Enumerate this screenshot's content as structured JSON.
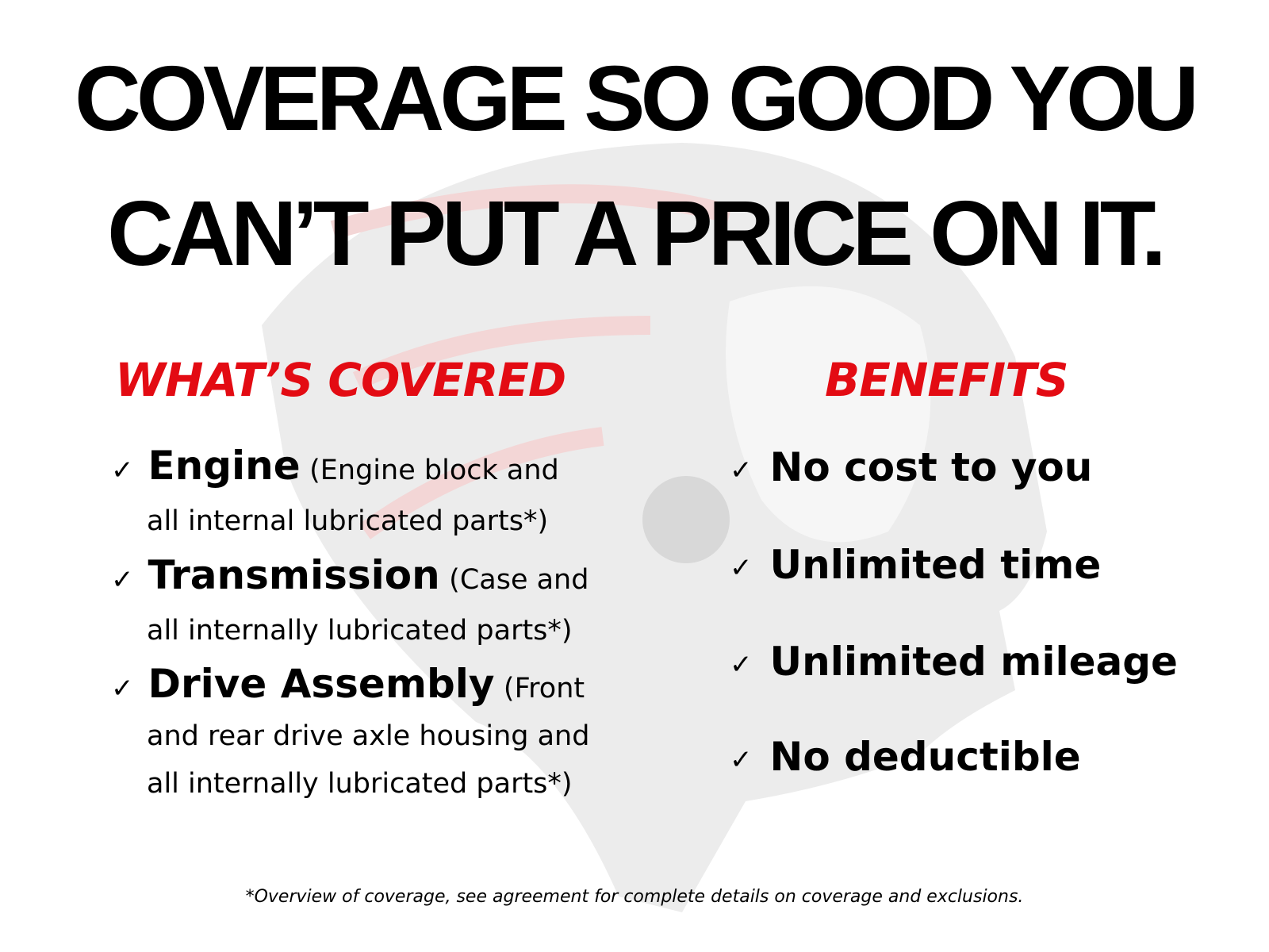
{
  "headline": {
    "line1": "COVERAGE SO GOOD YOU",
    "line2": "CAN’T PUT A PRICE ON IT."
  },
  "covered": {
    "title": "WHAT’S COVERED",
    "check": "✓",
    "items": [
      {
        "name": "Engine",
        "detail1": "(Engine block and",
        "detail2": "all internal lubricated parts*)"
      },
      {
        "name": "Transmission",
        "detail1": "(Case and",
        "detail2": "all internally lubricated parts*)"
      },
      {
        "name": "Drive Assembly",
        "detail1": "(Front",
        "detail2": "and rear drive axle housing and",
        "detail3": "all internally lubricated parts*)"
      }
    ]
  },
  "benefits": {
    "title": "BENEFITS",
    "check": "✓",
    "items": [
      "No cost to you",
      "Unlimited time",
      "Unlimited mileage",
      "No deductible"
    ]
  },
  "footnote": "*Overview of coverage, see agreement for complete details on coverage and exclusions.",
  "colors": {
    "accent": "#e30b13",
    "text": "#000000",
    "watermark": "#e6e6e6"
  }
}
